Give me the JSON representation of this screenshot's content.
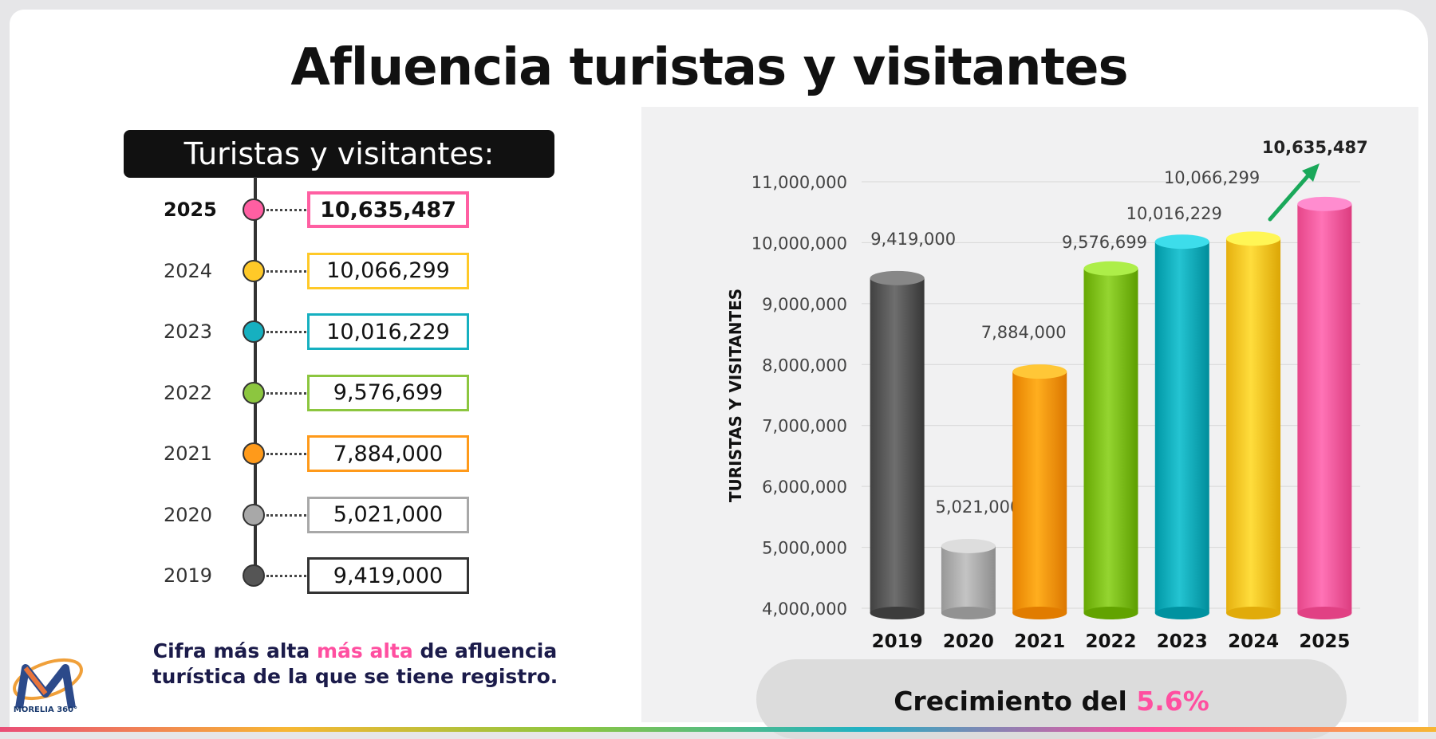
{
  "title": "Afluencia turistas y visitantes",
  "timeline": {
    "header": "Turistas y visitantes:",
    "items": [
      {
        "year": "2025",
        "value": "10,635,487",
        "color": "#ff5fa2",
        "highlight": true
      },
      {
        "year": "2024",
        "value": "10,066,299",
        "color": "#ffc928",
        "highlight": false
      },
      {
        "year": "2023",
        "value": "10,016,229",
        "color": "#16b0c0",
        "highlight": false
      },
      {
        "year": "2022",
        "value": "9,576,699",
        "color": "#8cc63f",
        "highlight": false
      },
      {
        "year": "2021",
        "value": "7,884,000",
        "color": "#ff9a1a",
        "highlight": false
      },
      {
        "year": "2020",
        "value": "5,021,000",
        "color": "#a8a8a8",
        "highlight": false
      },
      {
        "year": "2019",
        "value": "9,419,000",
        "color": "#555555",
        "highlight": false
      }
    ]
  },
  "caption": {
    "part1": "Cifra más alta ",
    "part2": "más alta",
    "part3": " de afluencia turística de la que se tiene registro."
  },
  "growth": {
    "label": "Crecimiento del ",
    "value": "5.6%"
  },
  "logo_text": "MORELIA 360°",
  "chart_data": {
    "type": "bar",
    "title": "",
    "xlabel": "",
    "ylabel": "TURISTAS Y VISITANTES",
    "categories": [
      "2019",
      "2020",
      "2021",
      "2022",
      "2023",
      "2024",
      "2025"
    ],
    "values": [
      9419000,
      5021000,
      7884000,
      9576699,
      10016229,
      10066299,
      10635487
    ],
    "value_labels": [
      "9,419,000",
      "5,021,000",
      "7,884,000",
      "9,576,699",
      "10,016,229",
      "10,066,299",
      "10,635,487"
    ],
    "colors": [
      "#5a5a5a",
      "#b0b0b0",
      "#ff9a0a",
      "#80c11c",
      "#10b0be",
      "#ffc928",
      "#ff5fa2"
    ],
    "ylim": [
      4000000,
      11000000
    ],
    "yticks": [
      4000000,
      5000000,
      6000000,
      7000000,
      8000000,
      9000000,
      10000000,
      11000000
    ],
    "ytick_labels": [
      "4,000,000",
      "5,000,000",
      "6,000,000",
      "7,000,000",
      "8,000,000",
      "9,000,000",
      "10,000,000",
      "11,000,000"
    ],
    "grid": true
  }
}
